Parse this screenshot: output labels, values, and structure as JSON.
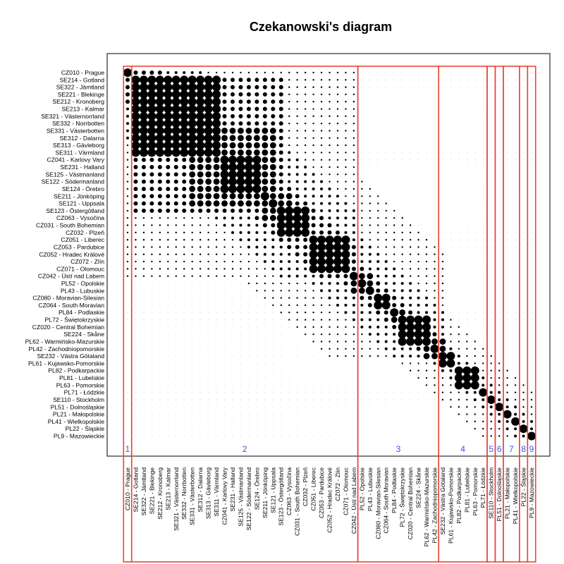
{
  "chart_data": {
    "type": "heatmap",
    "title": "Czekanowski's diagram",
    "xlabel": "",
    "ylabel": "",
    "regions": [
      "CZ010 - Prague",
      "SE214 - Gotland",
      "SE322 - Jämtland",
      "SE221 - Blekinge",
      "SE212 - Kronoberg",
      "SE213 - Kalmar",
      "SE321 - Västernorrland",
      "SE332 - Norrbotten",
      "SE331 - Västerbotten",
      "SE312 - Dalarna",
      "SE313 - Gävleborg",
      "SE311 - Värmland",
      "CZ041 - Karlovy Vary",
      "SE231 - Halland",
      "SE125 - Västmanland",
      "SE122 - Södermanland",
      "SE124 - Örebro",
      "SE211 - Jönköping",
      "SE121 - Uppsala",
      "SE123 - Östergötland",
      "CZ063 - Vysočina",
      "CZ031 - South Bohemian",
      "CZ032 - Plzeň",
      "CZ051 - Liberec",
      "CZ053 - Pardubice",
      "CZ052 - Hradec Králové",
      "CZ072 - Zlín",
      "CZ071 - Olomouc",
      "CZ042 - Ústí nad Labem",
      "PL52 - Opolskie",
      "PL43 - Lubuskie",
      "CZ080 - Moravian-Silesian",
      "CZ064 - South Moravian",
      "PL84 - Podlaskie",
      "PL72 - Świętokrzyskie",
      "CZ020 - Central Bohemian",
      "SE224 - Skåne",
      "PL62 - Warmińsko-Mazurskie",
      "PL42 - Zachodniopomorskie",
      "SE232 - Västra Götaland",
      "PL61 - Kujawsko-Pomorskie",
      "PL82 - Podkarpackie",
      "PL81 - Lubelskie",
      "PL63 - Pomorskie",
      "PL71 - Łódzkie",
      "SE110 - Stockholm",
      "PL51 - Dolnośląskie",
      "PL21 - Małopolskie",
      "PL41 - Wielkopolskie",
      "PL22 - Śląskie",
      "PL9 - Mazowieckie"
    ],
    "clusters": [
      {
        "label": "1",
        "start": 1,
        "end": 1
      },
      {
        "label": "2",
        "start": 2,
        "end": 29
      },
      {
        "label": "3",
        "start": 30,
        "end": 39
      },
      {
        "label": "4",
        "start": 40,
        "end": 45
      },
      {
        "label": "5",
        "start": 46,
        "end": 46
      },
      {
        "label": "6",
        "start": 47,
        "end": 47
      },
      {
        "label": "7",
        "start": 48,
        "end": 49
      },
      {
        "label": "8",
        "start": 50,
        "end": 50
      },
      {
        "label": "9",
        "start": 51,
        "end": 51
      }
    ],
    "strong_blocks": [
      {
        "start": 2,
        "end": 12,
        "level": 5
      },
      {
        "start": 6,
        "end": 12,
        "level": 5
      },
      {
        "start": 13,
        "end": 17,
        "level": 5
      },
      {
        "start": 9,
        "end": 19,
        "level": 4
      },
      {
        "start": 18,
        "end": 21,
        "level": 4
      },
      {
        "start": 20,
        "end": 23,
        "level": 5
      },
      {
        "start": 24,
        "end": 28,
        "level": 5
      },
      {
        "start": 29,
        "end": 31,
        "level": 4
      },
      {
        "start": 32,
        "end": 33,
        "level": 5
      },
      {
        "start": 34,
        "end": 35,
        "level": 4
      },
      {
        "start": 35,
        "end": 38,
        "level": 5
      },
      {
        "start": 38,
        "end": 40,
        "level": 4
      },
      {
        "start": 40,
        "end": 41,
        "level": 5
      },
      {
        "start": 42,
        "end": 44,
        "level": 5
      }
    ],
    "grid": false,
    "legend": "none",
    "colors": {
      "dots": "#000000",
      "cluster_border": "#e8473a",
      "cluster_label": "#3355ee",
      "frame": "#000000"
    }
  }
}
